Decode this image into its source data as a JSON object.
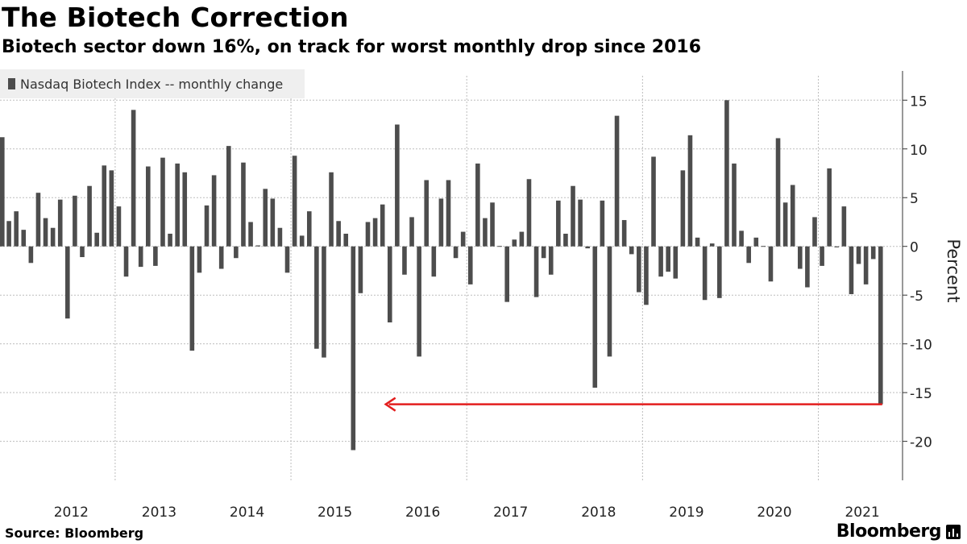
{
  "header": {
    "title": "The Biotech Correction",
    "subtitle": "Biotech sector down 16%, on track for worst monthly drop since 2016"
  },
  "footer": {
    "source": "Source: Bloomberg",
    "logo": "Bloomberg"
  },
  "chart_data": {
    "type": "bar",
    "legend": [
      "Nasdaq Biotech Index -- monthly change"
    ],
    "legend_position": "top-left",
    "ylabel": "Percent",
    "ylim": [
      -24,
      18
    ],
    "yticks": [
      15,
      10,
      5,
      0,
      -5,
      -10,
      -15,
      -20
    ],
    "ytick_labels": [
      "15",
      "10",
      "5",
      "0",
      "-5",
      "-10",
      "-15",
      "-20"
    ],
    "y_axis_side": "right",
    "grid": true,
    "x_tick_labels": [
      "2012",
      "2013",
      "2014",
      "2015",
      "2016",
      "2017",
      "2018",
      "2019",
      "2020",
      "2021"
    ],
    "x_start": "2011-09",
    "x_end": "2021-09",
    "bar_color": "#4d4d4d",
    "annotation": {
      "type": "arrow",
      "color": "#e31e1e",
      "y": -16.2,
      "from": "2021-09",
      "to": "2016-01"
    },
    "series": [
      {
        "values": [
          11.2,
          2.6,
          3.6,
          1.7,
          -1.7,
          5.5,
          2.9,
          1.9,
          4.8,
          -7.4,
          5.2,
          -1.1,
          6.2,
          1.4,
          8.3,
          7.8,
          4.1,
          -3.1,
          14.0,
          -2.1,
          8.2,
          -2.0,
          9.1,
          1.3,
          8.5,
          7.6,
          -10.7,
          -2.7,
          4.2,
          7.3,
          -2.3,
          10.3,
          -1.2,
          8.6,
          2.5,
          0.1,
          5.9,
          4.9,
          1.9,
          -2.7,
          9.3,
          1.1,
          3.6,
          -10.5,
          -11.4,
          7.6,
          2.6,
          1.3,
          -20.9,
          -4.8,
          2.5,
          2.9,
          4.3,
          -7.8,
          12.5,
          -2.9,
          3.0,
          -11.3,
          6.8,
          -3.1,
          4.9,
          6.8,
          -1.2,
          1.5,
          -3.9,
          8.5,
          2.9,
          4.5,
          0.0,
          -5.7,
          0.7,
          1.5,
          6.9,
          -5.2,
          -1.2,
          -2.9,
          4.7,
          1.3,
          6.2,
          4.8,
          -0.2,
          -14.5,
          4.7,
          -11.3,
          13.4,
          2.7,
          -0.8,
          -4.7,
          -6.0,
          9.2,
          -3.1,
          -2.6,
          -3.3,
          7.8,
          11.4,
          0.9,
          -5.5,
          0.3,
          -5.3,
          15.0,
          8.5,
          1.6,
          -1.7,
          0.9,
          0.0,
          -3.6,
          11.1,
          4.5,
          6.3,
          -2.3,
          -4.2,
          3.0,
          -2.0,
          8.0,
          -0.1,
          4.1,
          -4.9,
          -1.8,
          -3.9,
          -1.3,
          -16.2
        ]
      }
    ]
  }
}
